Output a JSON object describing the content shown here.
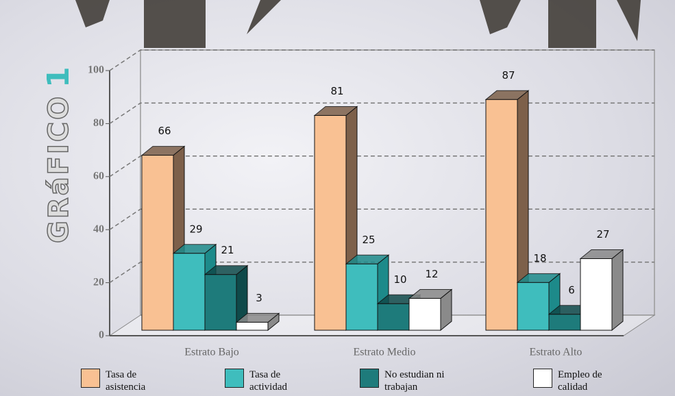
{
  "chart_data": {
    "type": "bar3d",
    "side_title": "GRáFICO",
    "side_number": "1",
    "categories": [
      "Estrato Bajo",
      "Estrato Medio",
      "Estrato Alto"
    ],
    "series": [
      {
        "name": "Tasa de asistencia",
        "color": "#f9c193",
        "side": "#7d604a",
        "values": [
          66,
          81,
          87
        ]
      },
      {
        "name": "Tasa de actividad",
        "color": "#3fbdbd",
        "side": "#1d8a8a",
        "values": [
          29,
          25,
          18
        ]
      },
      {
        "name": "No estudian ni trabajan",
        "color": "#1e7b7b",
        "side": "#0f4a4a",
        "values": [
          21,
          10,
          6
        ]
      },
      {
        "name": "Empleo de calidad",
        "color": "#ffffff",
        "side": "#8a8a8a",
        "values": [
          3,
          12,
          27
        ]
      }
    ],
    "ylim": [
      0,
      100
    ],
    "yticks": [
      0,
      20,
      40,
      60,
      80,
      100
    ],
    "grid": true
  }
}
